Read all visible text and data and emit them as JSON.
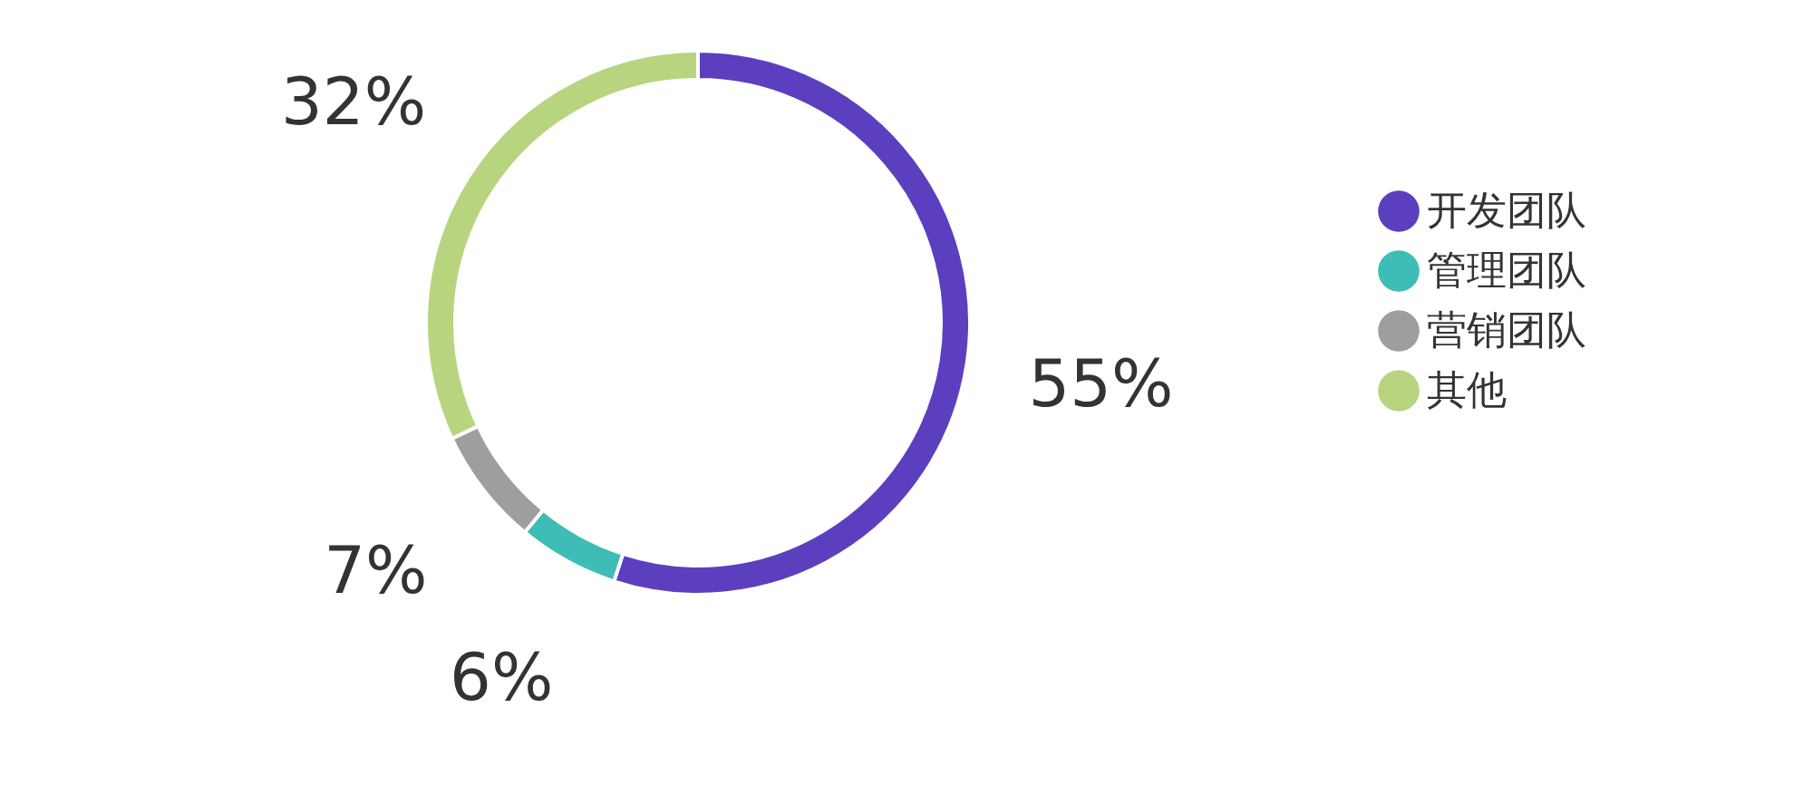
{
  "chart_data": {
    "type": "donut",
    "categories": [
      "开发团队",
      "管理团队",
      "营销团队",
      "其他"
    ],
    "values": [
      55,
      6,
      7,
      32
    ],
    "colors": [
      "#5b3fbf",
      "#3dbdb5",
      "#9e9e9e",
      "#b8d47e"
    ],
    "value_labels": [
      "55%",
      "6%",
      "7%",
      "32%"
    ],
    "legend": "right"
  }
}
